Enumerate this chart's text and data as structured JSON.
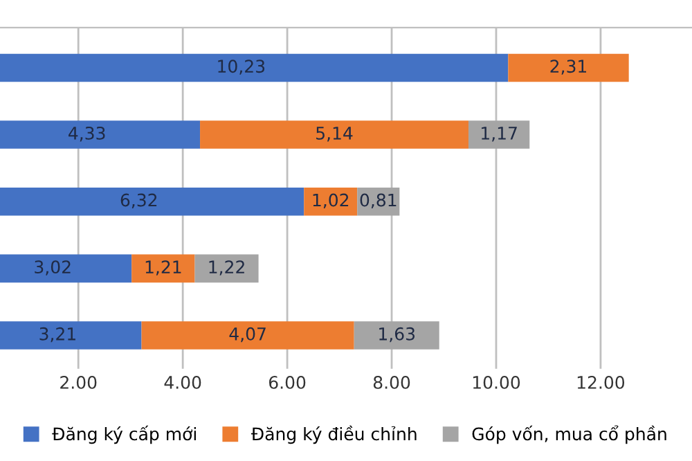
{
  "chart_data": {
    "type": "bar",
    "orientation": "horizontal",
    "stacked": true,
    "categories": [
      null,
      null,
      null,
      null,
      null
    ],
    "series": [
      {
        "name": "Đăng ký cấp mới",
        "color": "#4472c4",
        "values": [
          10.23,
          4.33,
          6.32,
          3.02,
          3.21
        ],
        "value_labels": [
          "10,23",
          "4,33",
          "6,32",
          "3,02",
          "3,21"
        ]
      },
      {
        "name": "Đăng ký điều chỉnh",
        "color": "#ed7d31",
        "values": [
          2.31,
          5.14,
          1.02,
          1.21,
          4.07
        ],
        "value_labels": [
          "2,31",
          "5,14",
          "1,02",
          "1,21",
          "4,07"
        ]
      },
      {
        "name": "Góp vốn, mua cổ phần",
        "color": "#a5a5a5",
        "values": [
          null,
          1.17,
          0.81,
          1.22,
          1.63
        ],
        "value_labels": [
          null,
          "1,17",
          "0,81",
          "1,22",
          "1,63"
        ]
      }
    ],
    "xlim": [
      0.5,
      13.75
    ],
    "xticks": [
      {
        "value": 2,
        "label": "2.00"
      },
      {
        "value": 4,
        "label": "4.00"
      },
      {
        "value": 6,
        "label": "6.00"
      },
      {
        "value": 8,
        "label": "8.00"
      },
      {
        "value": 10,
        "label": "10.00"
      },
      {
        "value": 12,
        "label": "12.00"
      }
    ],
    "grid": "x",
    "legend": "bottom"
  }
}
